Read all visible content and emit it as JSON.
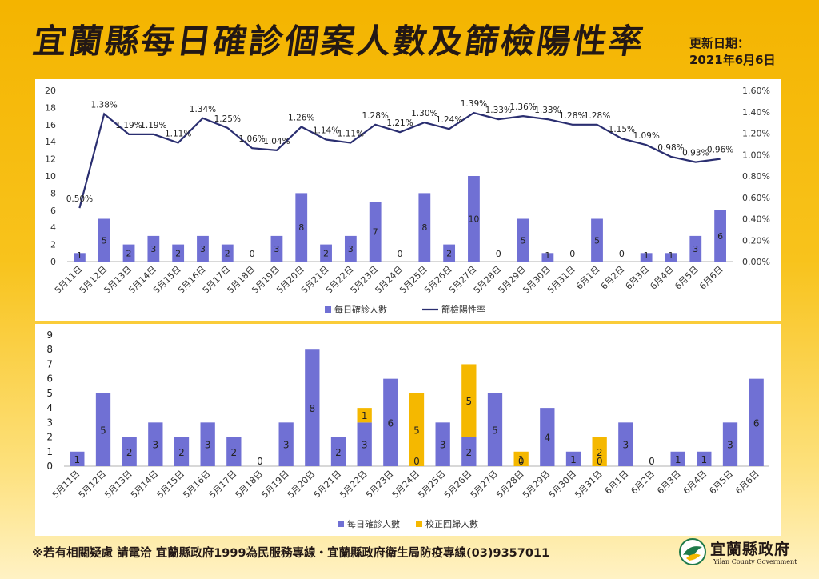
{
  "title": "宜蘭縣每日確診個案人數及篩檢陽性率",
  "update": {
    "label": "更新日期：",
    "date": "2021年6月6日"
  },
  "footer": "※若有相關疑慮 請電洽 宜蘭縣政府1999為民服務專線・宜蘭縣政府衛生局防疫專線(03)9357011",
  "logo": {
    "name": "宜蘭縣政府",
    "english": "Yilan County Government"
  },
  "colors": {
    "bar": "#7070d4",
    "line": "#2a2e70",
    "corrected": "#f5b800"
  },
  "chart_data": [
    {
      "type": "bar",
      "categories": [
        "5月11日",
        "5月12日",
        "5月13日",
        "5月14日",
        "5月15日",
        "5月16日",
        "5月17日",
        "5月18日",
        "5月19日",
        "5月20日",
        "5月21日",
        "5月22日",
        "5月23日",
        "5月24日",
        "5月25日",
        "5月26日",
        "5月27日",
        "5月28日",
        "5月29日",
        "5月30日",
        "5月31日",
        "6月1日",
        "6月2日",
        "6月3日",
        "6月4日",
        "6月5日",
        "6月6日"
      ],
      "series": [
        {
          "name": "每日確診人數",
          "type": "bar",
          "axis": "left",
          "values": [
            1,
            5,
            2,
            3,
            2,
            3,
            2,
            0,
            3,
            8,
            2,
            3,
            7,
            0,
            8,
            2,
            10,
            0,
            5,
            1,
            0,
            5,
            0,
            1,
            1,
            3,
            6
          ]
        },
        {
          "name": "篩檢陽性率",
          "type": "line",
          "axis": "right",
          "values": [
            0.5,
            1.38,
            1.19,
            1.19,
            1.11,
            1.34,
            1.25,
            1.06,
            1.04,
            1.26,
            1.14,
            1.11,
            1.28,
            1.21,
            1.3,
            1.24,
            1.39,
            1.33,
            1.36,
            1.33,
            1.28,
            1.28,
            1.15,
            1.09,
            0.98,
            0.93,
            0.96
          ],
          "labels": [
            "0.50%",
            "1.38%",
            "1.19%",
            "1.19%",
            "1.11%",
            "1.34%",
            "1.25%",
            "1.06%",
            "1.04%",
            "1.26%",
            "1.14%",
            "1.11%",
            "1.28%",
            "1.21%",
            "1.30%",
            "1.24%",
            "1.39%",
            "1.33%",
            "1.36%",
            "1.33%",
            "1.28%",
            "1.28%",
            "1.15%",
            "1.09%",
            "0.98%",
            "0.93%",
            "0.96%"
          ]
        }
      ],
      "ylim": [
        0,
        20
      ],
      "yticks": [
        "0",
        "2",
        "4",
        "6",
        "8",
        "10",
        "12",
        "14",
        "16",
        "18",
        "20"
      ],
      "y2lim": [
        0,
        1.6
      ],
      "y2ticks": [
        "0.00%",
        "0.20%",
        "0.40%",
        "0.60%",
        "0.80%",
        "1.00%",
        "1.20%",
        "1.40%",
        "1.60%"
      ],
      "grid": false,
      "legend": "bottom"
    },
    {
      "type": "bar",
      "stacked": true,
      "categories": [
        "5月11日",
        "5月12日",
        "5月13日",
        "5月14日",
        "5月15日",
        "5月16日",
        "5月17日",
        "5月18日",
        "5月19日",
        "5月20日",
        "5月21日",
        "5月22日",
        "5月23日",
        "5月24日",
        "5月25日",
        "5月26日",
        "5月27日",
        "5月28日",
        "5月29日",
        "5月30日",
        "5月31日",
        "6月1日",
        "6月2日",
        "6月3日",
        "6月4日",
        "6月5日",
        "6月6日"
      ],
      "series": [
        {
          "name": "每日確診人數",
          "values": [
            1,
            5,
            2,
            3,
            2,
            3,
            2,
            0,
            3,
            8,
            2,
            3,
            6,
            0,
            3,
            2,
            5,
            0,
            4,
            1,
            0,
            3,
            0,
            1,
            1,
            3,
            6
          ]
        },
        {
          "name": "校正回歸人數",
          "values": [
            0,
            0,
            0,
            0,
            0,
            0,
            0,
            0,
            0,
            0,
            0,
            1,
            0,
            5,
            0,
            5,
            0,
            1,
            0,
            0,
            2,
            0,
            0,
            0,
            0,
            0,
            0
          ]
        }
      ],
      "value_labels": [
        [
          "1"
        ],
        [
          "5"
        ],
        [
          "2"
        ],
        [
          "3"
        ],
        [
          "2"
        ],
        [
          "3"
        ],
        [
          "2"
        ],
        [
          "0"
        ],
        [
          "3"
        ],
        [
          "8"
        ],
        [
          "2"
        ],
        [
          "3",
          "1"
        ],
        [
          "6"
        ],
        [
          "0",
          "5"
        ],
        [
          "3"
        ],
        [
          "2",
          "5"
        ],
        [
          "5"
        ],
        [
          "0",
          "1"
        ],
        [
          "4"
        ],
        [
          "1"
        ],
        [
          "0",
          "2"
        ],
        [
          "3"
        ],
        [
          "0"
        ],
        [
          "1"
        ],
        [
          "1"
        ],
        [
          "3"
        ],
        [
          "6"
        ]
      ],
      "ylim": [
        0,
        9
      ],
      "yticks": [
        "0",
        "1",
        "2",
        "3",
        "4",
        "5",
        "6",
        "7",
        "8",
        "9"
      ],
      "grid": false,
      "legend": "bottom"
    }
  ]
}
